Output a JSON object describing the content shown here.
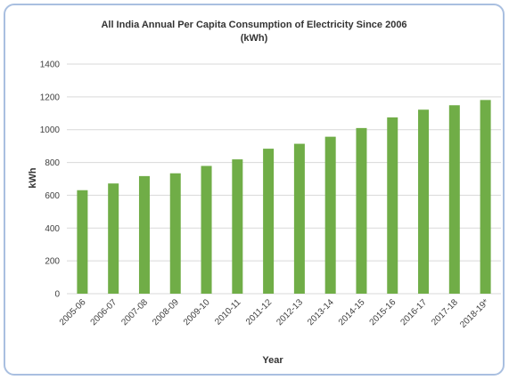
{
  "chart_data": {
    "type": "bar",
    "title": "All India Annual Per Capita Consumption of Electricity Since 2006",
    "subtitle": "(kWh)",
    "xlabel": "Year",
    "ylabel": "kWh",
    "categories": [
      "2005-06",
      "2006-07",
      "2007-08",
      "2008-09",
      "2009-10",
      "2010-11",
      "2011-12",
      "2012-13",
      "2013-14",
      "2014-15",
      "2015-16",
      "2016-17",
      "2017-18",
      "2018-19*"
    ],
    "values": [
      631,
      672,
      717,
      734,
      779,
      819,
      884,
      914,
      957,
      1010,
      1075,
      1122,
      1149,
      1181
    ],
    "ylim": [
      0,
      1400
    ],
    "yticks": [
      0,
      200,
      400,
      600,
      800,
      1000,
      1200,
      1400
    ],
    "grid": true,
    "legend": "none",
    "bar_color": "#70ad47",
    "grid_color": "#d9d9d9"
  }
}
